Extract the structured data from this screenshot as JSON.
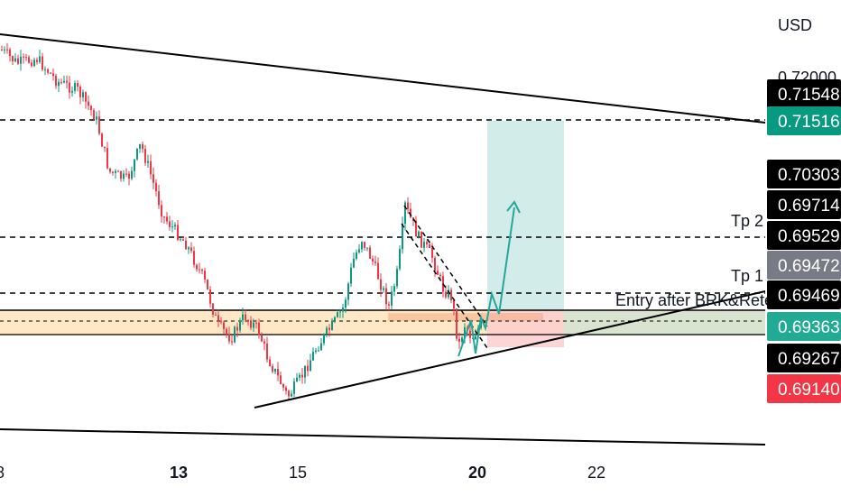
{
  "chart_data": {
    "type": "candlestick",
    "currency": "USD",
    "x_ticks": [
      {
        "label": "8",
        "bold": false
      },
      {
        "label": "13",
        "bold": true
      },
      {
        "label": "15",
        "bold": false
      },
      {
        "label": "20",
        "bold": true
      },
      {
        "label": "22",
        "bold": false
      }
    ],
    "axis_partial_label": "0.72000",
    "price_labels": [
      {
        "text": "0.71548",
        "bg": "#000000"
      },
      {
        "text": "0.71516",
        "bg": "#089981"
      },
      {
        "text": "0.70303",
        "bg": "#000000"
      },
      {
        "text": "0.69714",
        "bg": "#000000"
      },
      {
        "text": "0.69529",
        "bg": "#000000"
      },
      {
        "text": "0.69472",
        "bg": "#787b86"
      },
      {
        "text": "0.69469",
        "bg": "#000000"
      },
      {
        "text": "0.69363",
        "bg": "#22ab94"
      },
      {
        "text": "0.69267",
        "bg": "#000000"
      },
      {
        "text": "0.69140",
        "bg": "#f23645"
      }
    ],
    "annotations": [
      {
        "text": "Tp 2"
      },
      {
        "text": "Tp 1"
      },
      {
        "text": "Entry after BRK&Retest"
      }
    ],
    "colors": {
      "up": "#089981",
      "down": "#f23645",
      "target_zone": "#b2dfdb",
      "stop_zone": "#fccbcd",
      "supply_zone": "#ffe0b2",
      "arrow": "#26a69a"
    },
    "grid": false
  }
}
